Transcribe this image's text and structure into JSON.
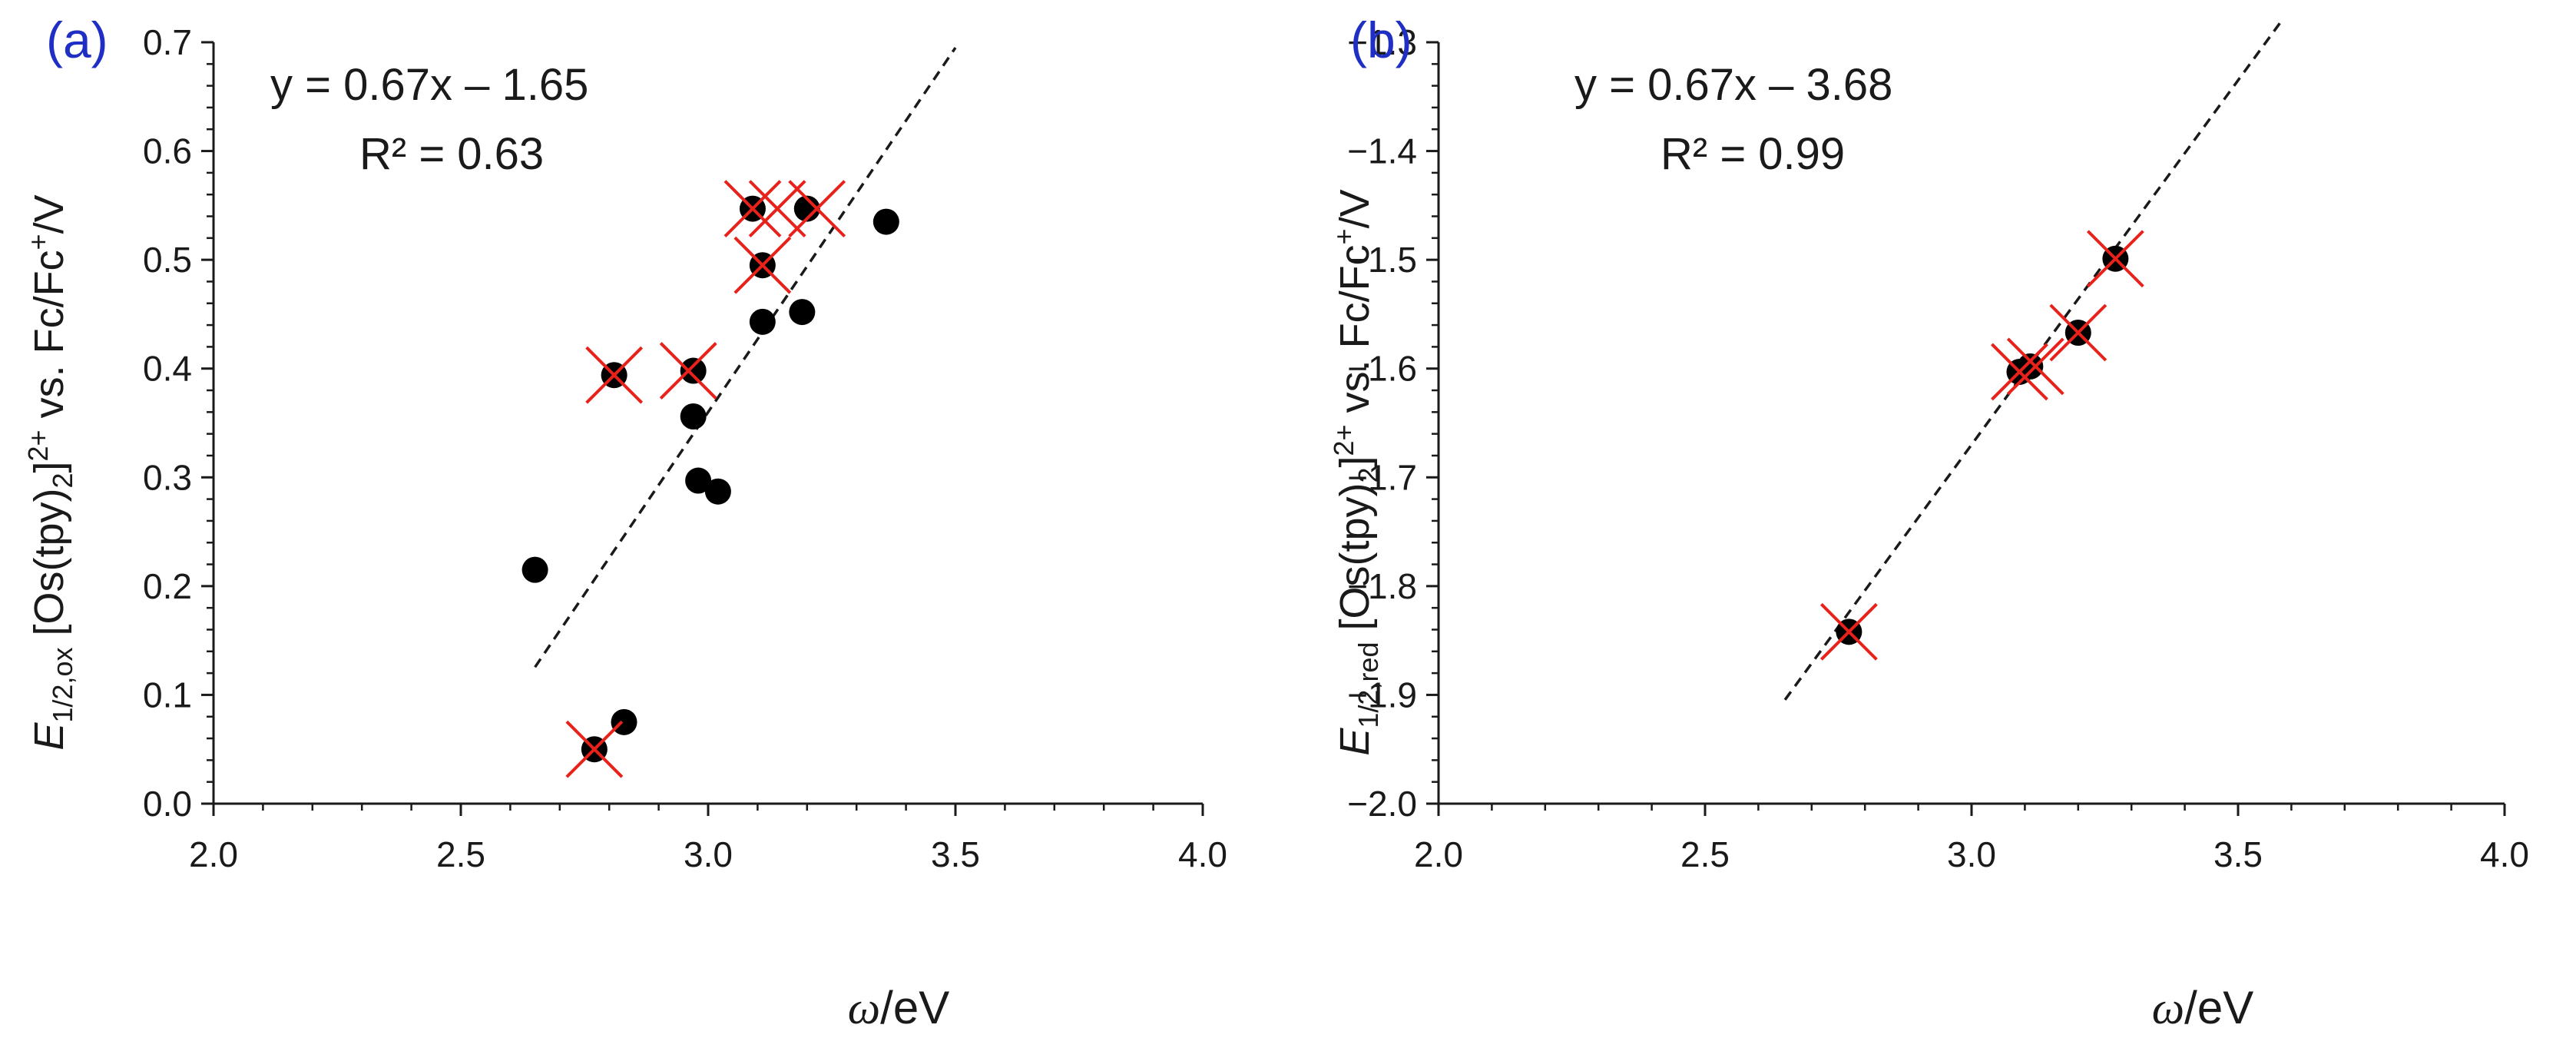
{
  "chart_data": [
    {
      "type": "scatter",
      "panel_label": "(a)",
      "equation": "y = 0.67x – 1.65",
      "r_squared": "R² = 0.63",
      "ylabel": {
        "italic_symbol": "E",
        "sub_symbol": "1/2,ox",
        "text_mid": " [Os(tpy)",
        "sub_count": "2",
        "text_after_bracket": "]",
        "sup_charge": "2+",
        "text_vs": " vs. Fc/Fc",
        "sup_fc": "+",
        "text_end": "/V"
      },
      "xlabel": {
        "italic_symbol": "ω",
        "text": "/eV"
      },
      "xlim": [
        2.0,
        4.0
      ],
      "ylim": [
        0.0,
        0.7
      ],
      "x_ticks": [
        "2.0",
        "2.5",
        "3.0",
        "3.5",
        "4.0"
      ],
      "y_ticks": [
        "0.0",
        "0.1",
        "0.2",
        "0.3",
        "0.4",
        "0.5",
        "0.6",
        "0.7"
      ],
      "fit_line": {
        "slope": 0.67,
        "intercept": -1.65,
        "x_range": [
          2.65,
          3.5
        ],
        "style": "dashed"
      },
      "series": [
        {
          "name": "points",
          "marker": "filled-circle",
          "x": [
            3.36,
            3.19,
            3.11,
            2.97,
            2.98,
            3.02,
            2.65,
            2.83,
            2.77,
            3.09,
            3.2,
            3.11,
            2.81,
            2.97
          ],
          "y": [
            0.535,
            0.452,
            0.443,
            0.356,
            0.297,
            0.287,
            0.215,
            0.075,
            0.05,
            0.547,
            0.547,
            0.495,
            0.394,
            0.398
          ]
        },
        {
          "name": "crossed",
          "marker": "red-x",
          "color": "#e8221a",
          "x": [
            3.09,
            3.14,
            3.22,
            3.11,
            2.81,
            2.96,
            2.77
          ],
          "y": [
            0.547,
            0.547,
            0.547,
            0.495,
            0.394,
            0.398,
            0.05
          ]
        }
      ]
    },
    {
      "type": "scatter",
      "panel_label": "(b)",
      "equation": "y = 0.67x – 3.68",
      "r_squared": "R² = 0.99",
      "ylabel": {
        "italic_symbol": "E",
        "sub_symbol": "1/2,red",
        "text_mid": " [Os(tpy)",
        "sub_count": "2",
        "text_after_bracket": "]",
        "sup_charge": "2+",
        "text_vs": " vs. Fc/Fc",
        "sup_fc": "+",
        "text_end": "/V"
      },
      "xlabel": {
        "italic_symbol": "ω",
        "text": "/eV"
      },
      "xlim": [
        2.0,
        4.0
      ],
      "ylim": [
        -2.0,
        -1.3
      ],
      "x_ticks": [
        "2.0",
        "2.5",
        "3.0",
        "3.5",
        "4.0"
      ],
      "y_ticks": [
        "−2.0",
        "−1.9",
        "−1.8",
        "−1.7",
        "−1.6",
        "−1.5",
        "−1.4",
        "−1.3"
      ],
      "fit_line": {
        "slope": 0.67,
        "intercept": -3.68,
        "x_range": [
          2.65,
          3.58
        ],
        "style": "dashed"
      },
      "series": [
        {
          "name": "points",
          "marker": "filled-circle",
          "x": [
            3.27,
            3.2,
            3.11,
            3.09,
            2.77
          ],
          "y": [
            -1.499,
            -1.567,
            -1.598,
            -1.603,
            -1.842
          ]
        },
        {
          "name": "crossed",
          "marker": "red-x",
          "color": "#e8221a",
          "x": [
            3.27,
            3.2,
            3.09,
            3.12,
            2.77
          ],
          "y": [
            -1.499,
            -1.567,
            -1.603,
            -1.598,
            -1.842
          ]
        }
      ]
    }
  ]
}
